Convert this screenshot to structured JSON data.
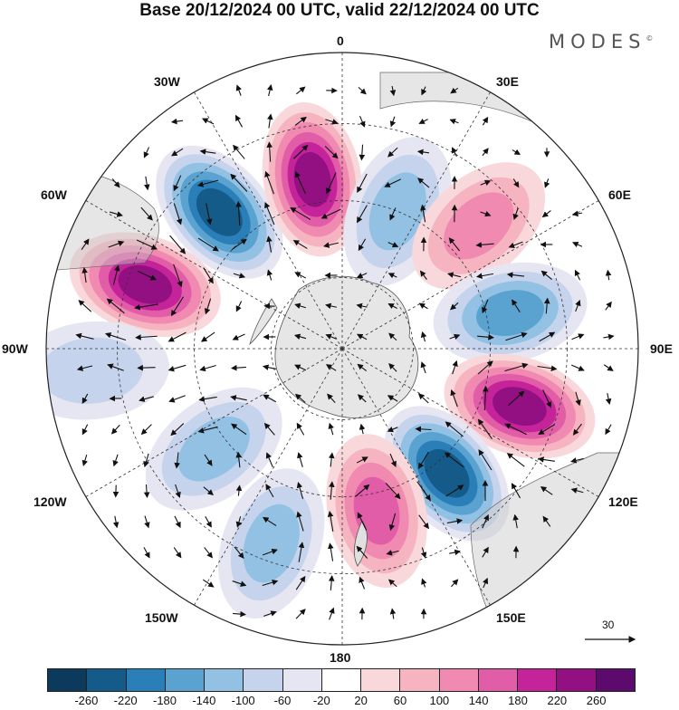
{
  "title": "Base 20/12/2024 00 UTC, valid 22/12/2024 00 UTC",
  "brand": "MODES",
  "brand_mark": "©",
  "longitude_labels": {
    "top": "0",
    "top_right": "30E",
    "right_upper": "60E",
    "right": "90E",
    "right_lower": "120E",
    "bottom_right": "150E",
    "bottom": "180",
    "bottom_left": "150W",
    "left_lower": "120W",
    "left": "90W",
    "left_upper": "60W",
    "top_left": "30W"
  },
  "reference_vector": {
    "value": "30"
  },
  "colorbar": {
    "colors": [
      "#0b3a5c",
      "#145b8a",
      "#2a7fb8",
      "#5aa3d0",
      "#93c1e3",
      "#c5d4ec",
      "#e6e6f3",
      "#ffffff",
      "#f9d8dc",
      "#f6b3c0",
      "#f18ab0",
      "#e25da8",
      "#c4239a",
      "#931083",
      "#5c0a6e"
    ],
    "tick_labels": [
      "-260",
      "-220",
      "-180",
      "-140",
      "-100",
      "-60",
      "-20",
      "20",
      "60",
      "100",
      "140",
      "180",
      "220",
      "260"
    ]
  },
  "map": {
    "projection": "south polar stereographic",
    "field": "anomaly",
    "anomaly_centers": [
      {
        "lon": -42,
        "r": 0.62,
        "value": -240
      },
      {
        "lon": -10,
        "r": 0.58,
        "value": 220
      },
      {
        "lon": 22,
        "r": 0.5,
        "value": -120
      },
      {
        "lon": 48,
        "r": 0.62,
        "value": 100
      },
      {
        "lon": 78,
        "r": 0.58,
        "value": -140
      },
      {
        "lon": 108,
        "r": 0.63,
        "value": 240
      },
      {
        "lon": 140,
        "r": 0.55,
        "value": -220
      },
      {
        "lon": 168,
        "r": 0.56,
        "value": 160
      },
      {
        "lon": -160,
        "r": 0.7,
        "value": -120
      },
      {
        "lon": -128,
        "r": 0.55,
        "value": -120
      },
      {
        "lon": -72,
        "r": 0.7,
        "value": 240
      },
      {
        "lon": -95,
        "r": 0.85,
        "value": -60
      }
    ]
  }
}
